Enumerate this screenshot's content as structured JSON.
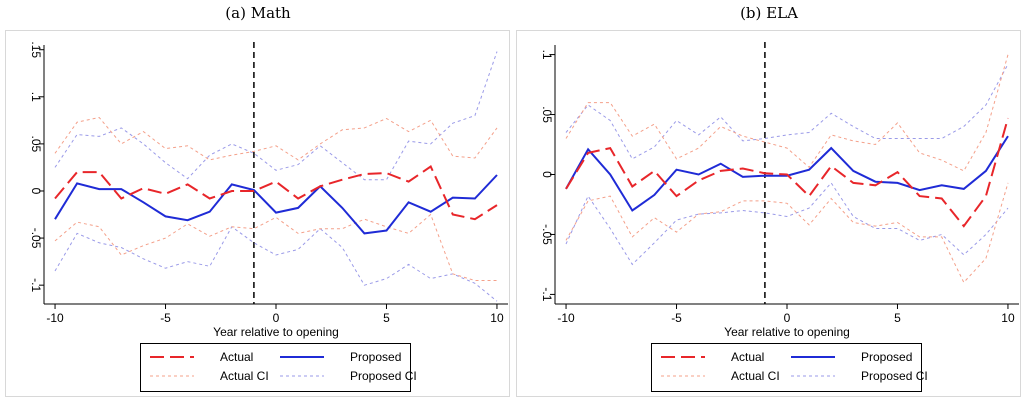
{
  "chart_data": [
    {
      "type": "line",
      "title": "(a) Math",
      "x_label": "Year relative to opening",
      "x": [
        -10,
        -9,
        -8,
        -7,
        -6,
        -5,
        -4,
        -3,
        -2,
        -1,
        0,
        1,
        2,
        3,
        4,
        5,
        6,
        7,
        8,
        9,
        10
      ],
      "xlim": [
        -10.5,
        10.5
      ],
      "xticks": [
        -10,
        -5,
        0,
        5,
        10
      ],
      "ylim": [
        -0.12,
        0.155
      ],
      "yticks": [
        {
          "value": -0.1,
          "label": "-.1"
        },
        {
          "value": -0.05,
          "label": "-.05"
        },
        0,
        {
          "value": 0.05,
          "label": ".05"
        },
        {
          "value": 0.1,
          "label": ".1"
        },
        {
          "value": 0.15,
          "label": ".15"
        }
      ],
      "reference_line_x": -1,
      "series": [
        {
          "name": "Actual",
          "color": "#e8262a",
          "dash": "long",
          "values": [
            -0.008,
            0.02,
            0.02,
            -0.008,
            0.003,
            -0.003,
            0.007,
            -0.008,
            0,
            0,
            0.01,
            -0.008,
            0.005,
            0.012,
            0.018,
            0.019,
            0.01,
            0.026,
            -0.025,
            -0.03,
            -0.015
          ]
        },
        {
          "name": "Proposed",
          "color": "#1f2bd6",
          "dash": "solid",
          "values": [
            -0.03,
            0.008,
            0.002,
            0.002,
            -0.012,
            -0.027,
            -0.031,
            -0.022,
            0.007,
            0.001,
            -0.023,
            -0.018,
            0.005,
            -0.018,
            -0.045,
            -0.042,
            -0.012,
            -0.022,
            -0.007,
            -0.008,
            0.017
          ]
        },
        {
          "name": "Actual CI",
          "color": "#f4a08a",
          "dash": "short",
          "values": [
            0.04,
            0.073,
            0.078,
            0.05,
            0.063,
            0.045,
            0.048,
            0.033,
            0.038,
            0.042,
            0.048,
            0.033,
            0.05,
            0.065,
            0.067,
            0.077,
            0.063,
            0.075,
            0.037,
            0.035,
            0.067
          ]
        },
        {
          "name": "Actual CI",
          "color": "#f4a08a",
          "dash": "short",
          "values": [
            -0.053,
            -0.033,
            -0.038,
            -0.068,
            -0.058,
            -0.05,
            -0.035,
            -0.048,
            -0.038,
            -0.04,
            -0.028,
            -0.045,
            -0.04,
            -0.04,
            -0.03,
            -0.038,
            -0.045,
            -0.025,
            -0.088,
            -0.095,
            -0.095
          ]
        },
        {
          "name": "Proposed CI",
          "color": "#9a9ae8",
          "dash": "short",
          "values": [
            0.025,
            0.06,
            0.058,
            0.067,
            0.05,
            0.03,
            0.013,
            0.038,
            0.05,
            0.04,
            0.022,
            0.028,
            0.048,
            0.03,
            0.012,
            0.012,
            0.053,
            0.05,
            0.072,
            0.08,
            0.148
          ]
        },
        {
          "name": "Proposed CI",
          "color": "#9a9ae8",
          "dash": "short",
          "values": [
            -0.085,
            -0.045,
            -0.055,
            -0.06,
            -0.072,
            -0.082,
            -0.075,
            -0.08,
            -0.038,
            -0.055,
            -0.068,
            -0.062,
            -0.04,
            -0.06,
            -0.1,
            -0.093,
            -0.078,
            -0.093,
            -0.088,
            -0.098,
            -0.117
          ]
        }
      ]
    },
    {
      "type": "line",
      "title": "(b) ELA",
      "x_label": "Year relative to opening",
      "x": [
        -10,
        -9,
        -8,
        -7,
        -6,
        -5,
        -4,
        -3,
        -2,
        -1,
        0,
        1,
        2,
        3,
        4,
        5,
        6,
        7,
        8,
        9,
        10
      ],
      "xlim": [
        -10.5,
        10.5
      ],
      "xticks": [
        -10,
        -5,
        0,
        5,
        10
      ],
      "ylim": [
        -0.108,
        0.108
      ],
      "yticks": [
        {
          "value": -0.1,
          "label": "-.1"
        },
        {
          "value": -0.05,
          "label": "-.05"
        },
        0,
        {
          "value": 0.05,
          "label": ".05"
        },
        {
          "value": 0.1,
          "label": ".1"
        }
      ],
      "reference_line_x": -1,
      "series": [
        {
          "name": "Actual",
          "color": "#e8262a",
          "dash": "long",
          "values": [
            -0.012,
            0.018,
            0.022,
            -0.01,
            0.003,
            -0.018,
            -0.005,
            0.003,
            0.005,
            0.001,
            0,
            -0.018,
            0.007,
            -0.007,
            -0.009,
            0.002,
            -0.018,
            -0.02,
            -0.043,
            -0.018,
            0.047
          ]
        },
        {
          "name": "Proposed",
          "color": "#1f2bd6",
          "dash": "solid",
          "values": [
            -0.012,
            0.021,
            0,
            -0.03,
            -0.017,
            0.004,
            0,
            0.009,
            -0.002,
            -0.001,
            -0.001,
            0.004,
            0.022,
            0.003,
            -0.006,
            -0.007,
            -0.013,
            -0.009,
            -0.012,
            0.003,
            0.032
          ]
        },
        {
          "name": "Actual CI",
          "color": "#f4a08a",
          "dash": "short",
          "values": [
            0.03,
            0.06,
            0.06,
            0.032,
            0.042,
            0.013,
            0.022,
            0.04,
            0.032,
            0.027,
            0.022,
            0.006,
            0.033,
            0.028,
            0.025,
            0.043,
            0.018,
            0.012,
            0.003,
            0.035,
            0.1
          ]
        },
        {
          "name": "Actual CI",
          "color": "#f4a08a",
          "dash": "short",
          "values": [
            -0.055,
            -0.022,
            -0.018,
            -0.052,
            -0.036,
            -0.048,
            -0.033,
            -0.031,
            -0.022,
            -0.022,
            -0.024,
            -0.042,
            -0.02,
            -0.04,
            -0.043,
            -0.04,
            -0.052,
            -0.052,
            -0.09,
            -0.07,
            -0.007
          ]
        },
        {
          "name": "Proposed CI",
          "color": "#9a9ae8",
          "dash": "short",
          "values": [
            0.035,
            0.058,
            0.045,
            0.013,
            0.023,
            0.045,
            0.033,
            0.048,
            0.028,
            0.03,
            0.033,
            0.035,
            0.051,
            0.04,
            0.03,
            0.03,
            0.03,
            0.03,
            0.04,
            0.058,
            0.092
          ]
        },
        {
          "name": "Proposed CI",
          "color": "#9a9ae8",
          "dash": "short",
          "values": [
            -0.058,
            -0.018,
            -0.045,
            -0.075,
            -0.057,
            -0.038,
            -0.033,
            -0.032,
            -0.03,
            -0.032,
            -0.035,
            -0.028,
            -0.007,
            -0.035,
            -0.045,
            -0.045,
            -0.055,
            -0.05,
            -0.067,
            -0.05,
            -0.028
          ]
        }
      ]
    }
  ]
}
